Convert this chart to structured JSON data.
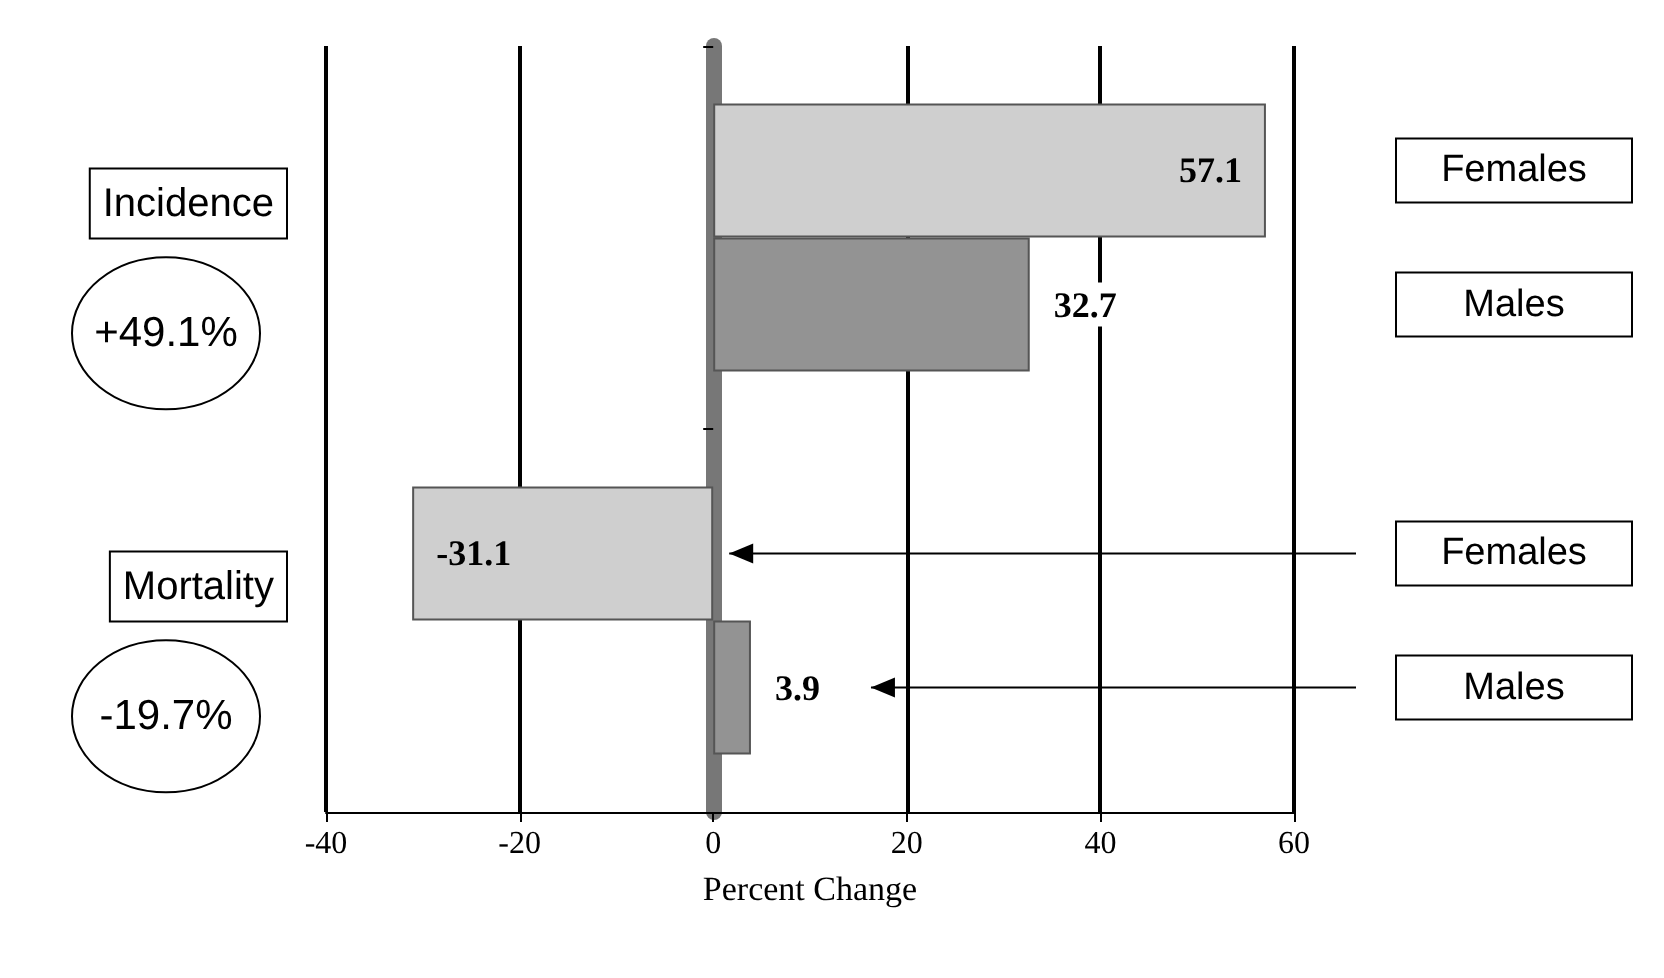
{
  "chart_data": {
    "type": "bar",
    "orientation": "horizontal",
    "xlabel": "Percent Change",
    "categories": [
      "Incidence",
      "Mortality"
    ],
    "series": [
      {
        "name": "Females",
        "color": "#cfcfcf",
        "values": [
          57.1,
          -31.1
        ]
      },
      {
        "name": "Males",
        "color": "#939393",
        "values": [
          32.7,
          3.9
        ]
      }
    ],
    "annotations": [
      "+49.1%",
      "-19.7%"
    ],
    "xlim": [
      -40,
      60
    ],
    "xticks": [
      -40,
      -20,
      0,
      20,
      40,
      60
    ],
    "grid": "x",
    "legend": false,
    "data_labels": true
  }
}
